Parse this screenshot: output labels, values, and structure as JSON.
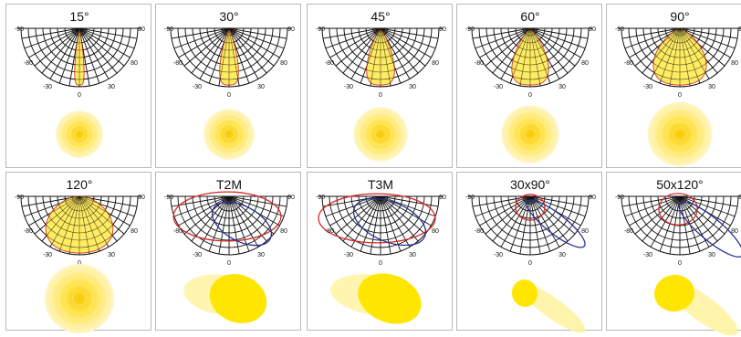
{
  "panels": [
    {
      "title": "15°",
      "pattern": {
        "kind": "symmetric",
        "beam_deg": 15
      }
    },
    {
      "title": "30°",
      "pattern": {
        "kind": "symmetric",
        "beam_deg": 30
      }
    },
    {
      "title": "45°",
      "pattern": {
        "kind": "symmetric",
        "beam_deg": 45
      }
    },
    {
      "title": "60°",
      "pattern": {
        "kind": "symmetric",
        "beam_deg": 60
      }
    },
    {
      "title": "90°",
      "pattern": {
        "kind": "symmetric",
        "beam_deg": 90
      }
    },
    {
      "title": "120°",
      "pattern": {
        "kind": "symmetric",
        "beam_deg": 120
      }
    },
    {
      "title": "T2M",
      "pattern": {
        "kind": "asymmetric",
        "type": "T2M"
      }
    },
    {
      "title": "T3M",
      "pattern": {
        "kind": "asymmetric",
        "type": "T3M"
      }
    },
    {
      "title": "30x90°",
      "pattern": {
        "kind": "asymmetric",
        "type": "30x90"
      }
    },
    {
      "title": "50x120°",
      "pattern": {
        "kind": "asymmetric",
        "type": "50x120"
      }
    }
  ],
  "polar_labels": {
    "left_top": "-90",
    "right_top": "90",
    "left_mid": "-80",
    "right_mid": "80",
    "left_bottom": "-30",
    "right_bottom": "30",
    "center_bottom": "0"
  },
  "colors": {
    "beam_fill": "#ffeb5a",
    "beam_stroke": "#e0472d",
    "curve_red": "#d62828",
    "curve_blue": "#2a3192",
    "spot_core": "#f7c900",
    "spot_mid": "#ffe44d",
    "spot_edge": "#fff6c7",
    "wash_shape": "#ffe600",
    "wash_shadow": "#fff3a3",
    "grid_line": "#111111",
    "cell_border": "#b9b9b9"
  }
}
